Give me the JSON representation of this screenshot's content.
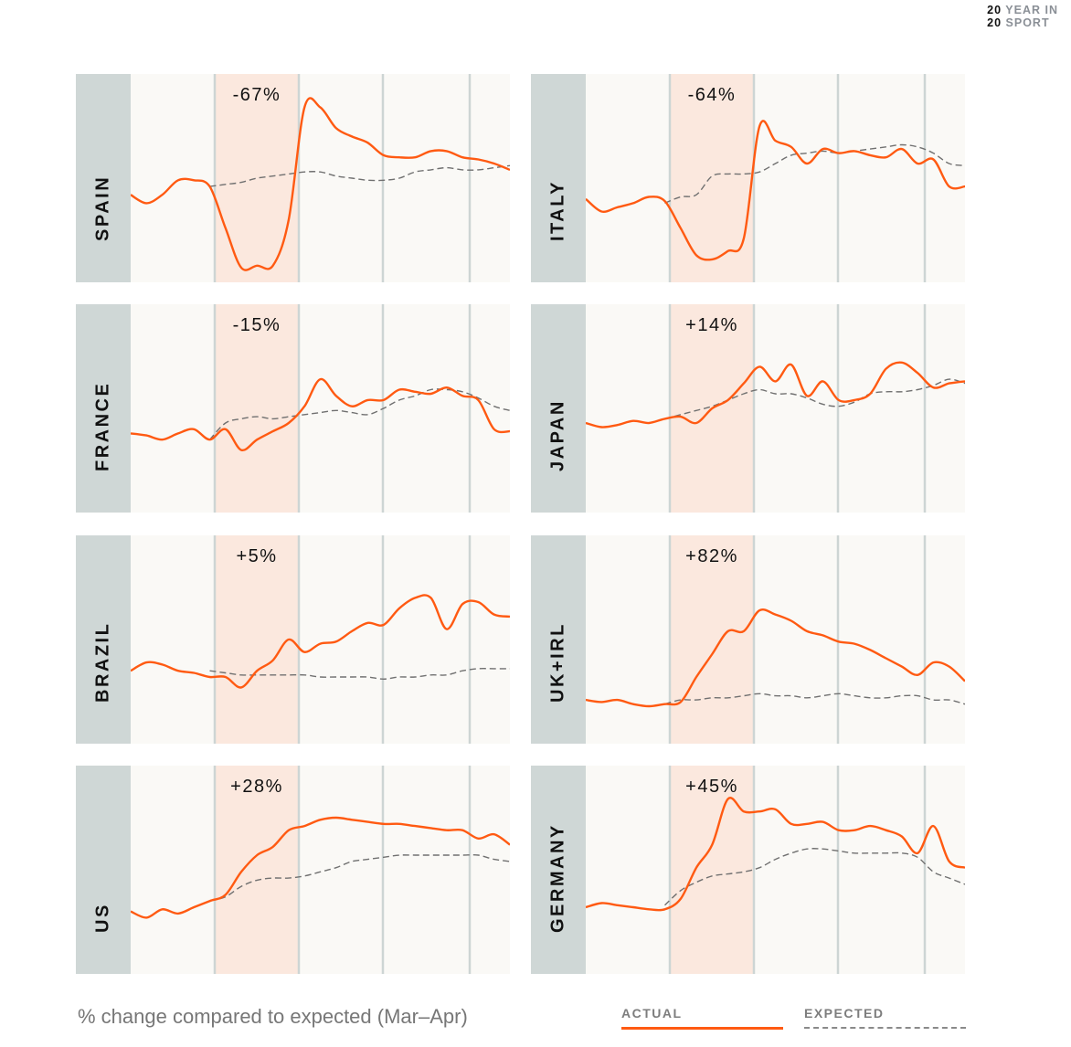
{
  "logo": {
    "line1_num": "20",
    "line1_text": "YEAR IN",
    "line2_num": "20",
    "line2_text": "SPORT"
  },
  "footnote": "% change compared to expected (Mar–Apr)",
  "legend": {
    "actual": "ACTUAL",
    "expected": "EXPECTED"
  },
  "colors": {
    "actual": "#ff5a12",
    "expected": "#707070",
    "highlight_band": "#fbe8de",
    "label_bg": "#cfd7d6",
    "plot_bg": "#faf9f6",
    "gridline": "#cdd5d4"
  },
  "chart_data": {
    "type": "line",
    "layout": "small-multiples",
    "grid": "vertical",
    "legend_placement": "bottom-right",
    "y_axis": "relative index (unlabeled)",
    "panels": [
      {
        "country": "SPAIN",
        "change": "-67%",
        "actual": [
          42,
          38,
          42,
          49,
          49,
          46,
          26,
          7,
          8,
          8,
          30,
          84,
          84,
          74,
          70,
          67,
          61,
          60,
          60,
          63,
          63,
          60,
          59,
          57,
          54
        ],
        "expected": [
          null,
          null,
          null,
          null,
          null,
          46,
          47,
          48,
          50,
          51,
          52,
          53,
          53,
          51,
          50,
          49,
          49,
          50,
          53,
          54,
          55,
          54,
          54,
          55,
          56
        ]
      },
      {
        "country": "ITALY",
        "change": "-64%",
        "actual": [
          40,
          34,
          36,
          38,
          41,
          39,
          26,
          13,
          11,
          15,
          21,
          75,
          68,
          65,
          57,
          64,
          62,
          63,
          61,
          60,
          64,
          57,
          59,
          46,
          46
        ],
        "expected": [
          null,
          null,
          null,
          null,
          null,
          38,
          41,
          42,
          51,
          52,
          52,
          53,
          57,
          61,
          62,
          63,
          62,
          63,
          64,
          65,
          66,
          65,
          62,
          57,
          56
        ]
      },
      {
        "country": "FRANCE",
        "change": "-15%",
        "actual": [
          38,
          37,
          35,
          38,
          40,
          35,
          40,
          30,
          35,
          39,
          43,
          51,
          64,
          56,
          51,
          54,
          54,
          59,
          58,
          57,
          60,
          56,
          54,
          40,
          39
        ],
        "expected": [
          null,
          null,
          null,
          null,
          null,
          35,
          43,
          45,
          46,
          45,
          46,
          47,
          48,
          49,
          48,
          47,
          50,
          54,
          56,
          59,
          59,
          58,
          55,
          51,
          49
        ]
      },
      {
        "country": "JAPAN",
        "change": "+14%",
        "actual": [
          43,
          41,
          42,
          44,
          43,
          45,
          46,
          43,
          50,
          54,
          62,
          70,
          63,
          71,
          56,
          63,
          54,
          54,
          57,
          69,
          72,
          67,
          60,
          62,
          63
        ],
        "expected": [
          null,
          null,
          null,
          null,
          null,
          45,
          47,
          49,
          51,
          54,
          57,
          59,
          57,
          57,
          55,
          52,
          51,
          53,
          57,
          58,
          58,
          59,
          61,
          64,
          62
        ]
      },
      {
        "country": "BRAZIL",
        "change": "+5%",
        "actual": [
          35,
          39,
          38,
          35,
          34,
          32,
          32,
          27,
          35,
          40,
          50,
          44,
          48,
          49,
          54,
          58,
          57,
          65,
          70,
          70,
          55,
          67,
          68,
          62,
          61
        ],
        "expected": [
          null,
          null,
          null,
          null,
          null,
          35,
          34,
          33,
          33,
          33,
          33,
          33,
          32,
          32,
          32,
          32,
          31,
          32,
          32,
          33,
          33,
          35,
          36,
          36,
          36
        ]
      },
      {
        "country": "UK+IRL",
        "change": "+82%",
        "actual": [
          21,
          20,
          21,
          19,
          18,
          19,
          20,
          32,
          43,
          54,
          54,
          64,
          62,
          59,
          54,
          52,
          49,
          48,
          45,
          41,
          37,
          33,
          39,
          37,
          30
        ],
        "expected": [
          null,
          null,
          null,
          null,
          null,
          19,
          21,
          21,
          22,
          22,
          23,
          24,
          23,
          23,
          22,
          23,
          24,
          23,
          22,
          22,
          23,
          23,
          21,
          21,
          19
        ]
      },
      {
        "country": "US",
        "change": "+28%",
        "actual": [
          30,
          27,
          31,
          29,
          32,
          35,
          38,
          49,
          57,
          61,
          69,
          71,
          74,
          75,
          74,
          73,
          72,
          72,
          71,
          70,
          69,
          69,
          65,
          67,
          62
        ],
        "expected": [
          null,
          null,
          null,
          null,
          null,
          35,
          37,
          42,
          45,
          46,
          46,
          47,
          49,
          51,
          54,
          55,
          56,
          57,
          57,
          57,
          57,
          57,
          57,
          55,
          54
        ]
      },
      {
        "country": "GERMANY",
        "change": "+45%",
        "actual": [
          32,
          34,
          33,
          32,
          31,
          31,
          36,
          51,
          62,
          84,
          78,
          78,
          79,
          72,
          72,
          73,
          69,
          69,
          71,
          69,
          66,
          58,
          71,
          54,
          51
        ],
        "expected": [
          null,
          null,
          null,
          null,
          null,
          33,
          40,
          44,
          47,
          48,
          49,
          51,
          55,
          58,
          60,
          60,
          59,
          58,
          58,
          58,
          58,
          56,
          49,
          46,
          43
        ]
      }
    ]
  }
}
